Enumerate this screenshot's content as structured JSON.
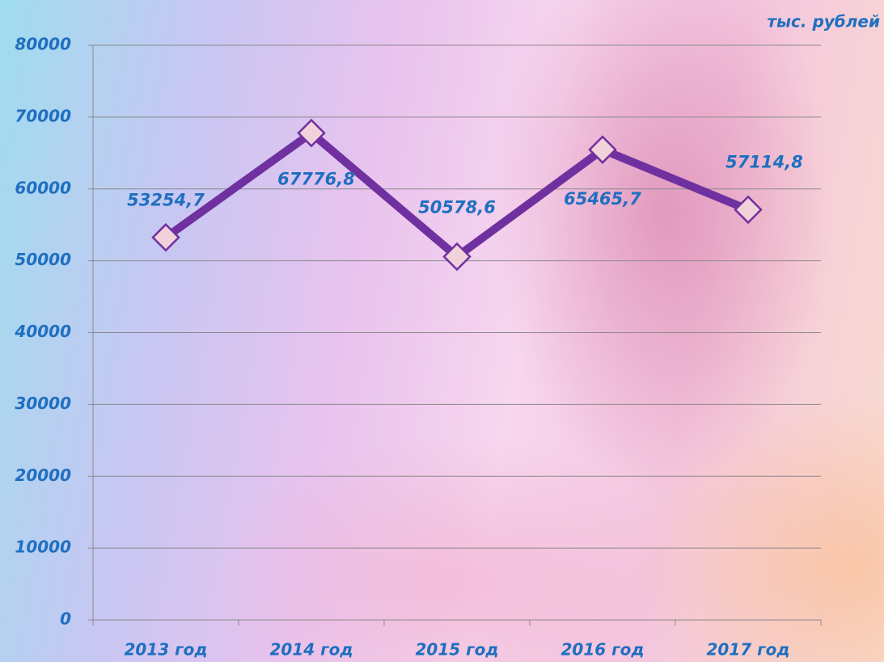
{
  "chart_data": {
    "type": "line",
    "unit": "тыс. рублей",
    "categories": [
      "2013 год",
      "2014 год",
      "2015 год",
      "2016 год",
      "2017 год"
    ],
    "values": [
      53254.7,
      67776.8,
      50578.6,
      65465.7,
      57114.8
    ],
    "value_labels": [
      "53254,7",
      "67776,8",
      "50578,6",
      "65465,7",
      "57114,8"
    ],
    "color": "#7030a0",
    "marker_color": "#f2d2da",
    "ylim": [
      0,
      80000
    ],
    "yticks": [
      0,
      10000,
      20000,
      30000,
      40000,
      50000,
      60000,
      70000,
      80000
    ],
    "grid": true
  }
}
